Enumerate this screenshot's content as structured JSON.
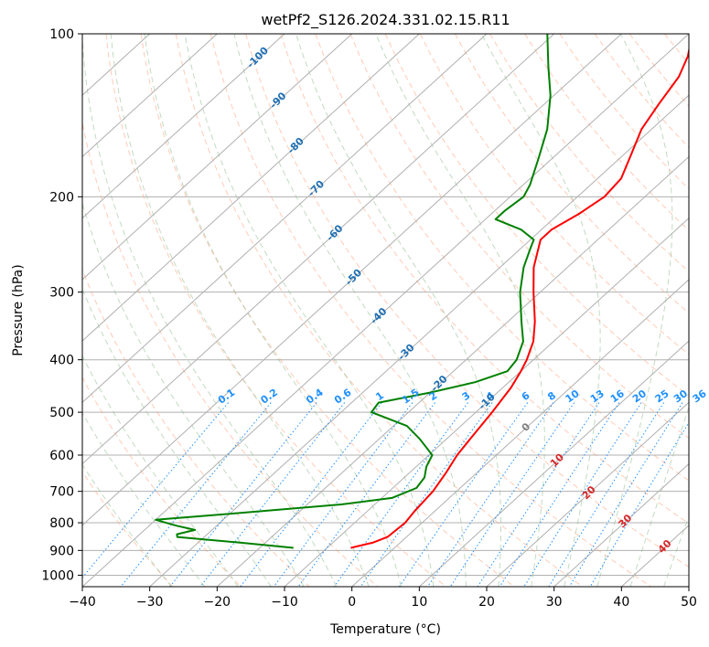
{
  "chart_data": {
    "type": "line",
    "subtype": "skew-t log-p diagram",
    "title": "wetPf2_S126.2024.331.02.15.R11",
    "xlabel": "Temperature (°C)",
    "ylabel": "Pressure (hPa)",
    "xlim": [
      -40,
      50
    ],
    "ylim": [
      1050,
      100
    ],
    "y_scale": "log",
    "grid": true,
    "x_ticks": [
      "−40",
      "−30",
      "−20",
      "−10",
      "0",
      "10",
      "20",
      "30",
      "40",
      "50"
    ],
    "x_tick_values": [
      -40,
      -30,
      -20,
      -10,
      0,
      10,
      20,
      30,
      40,
      50
    ],
    "y_ticks": [
      "100",
      "200",
      "300",
      "400",
      "500",
      "600",
      "700",
      "800",
      "900",
      "1000"
    ],
    "y_tick_values": [
      100,
      200,
      300,
      400,
      500,
      600,
      700,
      800,
      900,
      1000
    ],
    "series": [
      {
        "color": "#ff0000",
        "points": [
          {
            "p": 890,
            "t": -6.5
          },
          {
            "p": 870,
            "t": -4.0
          },
          {
            "p": 850,
            "t": -2.8
          },
          {
            "p": 800,
            "t": -2.5
          },
          {
            "p": 760,
            "t": -3.0
          },
          {
            "p": 700,
            "t": -3.5
          },
          {
            "p": 650,
            "t": -4.5
          },
          {
            "p": 600,
            "t": -5.8
          },
          {
            "p": 560,
            "t": -6.5
          },
          {
            "p": 500,
            "t": -7.6
          },
          {
            "p": 450,
            "t": -8.8
          },
          {
            "p": 420,
            "t": -10.0
          },
          {
            "p": 400,
            "t": -11.0
          },
          {
            "p": 370,
            "t": -13.0
          },
          {
            "p": 340,
            "t": -16.0
          },
          {
            "p": 300,
            "t": -21.0
          },
          {
            "p": 270,
            "t": -25.0
          },
          {
            "p": 240,
            "t": -28.5
          },
          {
            "p": 230,
            "t": -28.5
          },
          {
            "p": 215,
            "t": -27.0
          },
          {
            "p": 200,
            "t": -26.0
          },
          {
            "p": 185,
            "t": -26.5
          },
          {
            "p": 170,
            "t": -28.5
          },
          {
            "p": 150,
            "t": -31.5
          },
          {
            "p": 135,
            "t": -33.0
          },
          {
            "p": 120,
            "t": -34.5
          },
          {
            "p": 110,
            "t": -36.5
          },
          {
            "p": 100,
            "t": -39.5
          }
        ]
      },
      {
        "color": "#008000",
        "points": [
          {
            "p": 890,
            "t": -15.0
          },
          {
            "p": 870,
            "t": -24.0
          },
          {
            "p": 850,
            "t": -34.0
          },
          {
            "p": 840,
            "t": -34.5
          },
          {
            "p": 825,
            "t": -32.5
          },
          {
            "p": 810,
            "t": -36.0
          },
          {
            "p": 790,
            "t": -40.0
          },
          {
            "p": 770,
            "t": -30.0
          },
          {
            "p": 740,
            "t": -15.0
          },
          {
            "p": 720,
            "t": -8.5
          },
          {
            "p": 690,
            "t": -6.5
          },
          {
            "p": 660,
            "t": -7.0
          },
          {
            "p": 630,
            "t": -8.5
          },
          {
            "p": 600,
            "t": -9.5
          },
          {
            "p": 560,
            "t": -14.0
          },
          {
            "p": 530,
            "t": -18.0
          },
          {
            "p": 500,
            "t": -25.5
          },
          {
            "p": 480,
            "t": -26.0
          },
          {
            "p": 460,
            "t": -20.0
          },
          {
            "p": 440,
            "t": -15.0
          },
          {
            "p": 420,
            "t": -12.0
          },
          {
            "p": 400,
            "t": -12.5
          },
          {
            "p": 370,
            "t": -14.5
          },
          {
            "p": 340,
            "t": -18.0
          },
          {
            "p": 300,
            "t": -23.0
          },
          {
            "p": 270,
            "t": -26.5
          },
          {
            "p": 250,
            "t": -28.5
          },
          {
            "p": 240,
            "t": -29.5
          },
          {
            "p": 230,
            "t": -33.0
          },
          {
            "p": 220,
            "t": -38.5
          },
          {
            "p": 212,
            "t": -38.5
          },
          {
            "p": 200,
            "t": -38.0
          },
          {
            "p": 190,
            "t": -39.0
          },
          {
            "p": 170,
            "t": -42.0
          },
          {
            "p": 150,
            "t": -45.5
          },
          {
            "p": 130,
            "t": -50.5
          },
          {
            "p": 115,
            "t": -55.5
          },
          {
            "p": 100,
            "t": -61.0
          }
        ]
      }
    ],
    "reference_lines": {
      "isotherm_spacing_c": 10,
      "isotherm_color": "#b0b0b0",
      "dry_adiabat_color": "#ffa07a",
      "moist_adiabat_color": "#8fbc8f",
      "mixing_ratio_color": "#1e90ff",
      "mixing_ratio_values_gkg": [
        0.1,
        0.2,
        0.4,
        0.6,
        1,
        1.5,
        2,
        3,
        4,
        6,
        8,
        10,
        13,
        16,
        20,
        25,
        30,
        36
      ],
      "mixing_ratio_labels": [
        "0.1",
        "0.2",
        "0.4",
        "0.6",
        "1",
        "1.5",
        "2",
        "3",
        "4",
        "6",
        "8",
        "10",
        "13",
        "16",
        "20",
        "25",
        "30",
        "36"
      ],
      "mixing_ratio_label_pressure": 480,
      "temperature_labels": [
        {
          "text": "-100",
          "color": "#1f6fb4",
          "p": 110,
          "t": -100
        },
        {
          "text": "-90",
          "color": "#1f6fb4",
          "p": 132,
          "t": -90
        },
        {
          "text": "-80",
          "color": "#1f6fb4",
          "p": 160,
          "t": -80
        },
        {
          "text": "-70",
          "color": "#1f6fb4",
          "p": 192,
          "t": -70
        },
        {
          "text": "-60",
          "color": "#1f6fb4",
          "p": 232,
          "t": -60
        },
        {
          "text": "-50",
          "color": "#1f6fb4",
          "p": 280,
          "t": -50
        },
        {
          "text": "-40",
          "color": "#1f6fb4",
          "p": 330,
          "t": -40
        },
        {
          "text": "-30",
          "color": "#1f6fb4",
          "p": 385,
          "t": -30
        },
        {
          "text": "-20",
          "color": "#1f6fb4",
          "p": 440,
          "t": -20
        },
        {
          "text": "-10",
          "color": "#1f6fb4",
          "p": 475,
          "t": -10
        },
        {
          "text": "0",
          "color": "#808080",
          "p": 530,
          "t": 0
        },
        {
          "text": "10",
          "color": "#d62728",
          "p": 610,
          "t": 10
        },
        {
          "text": "20",
          "color": "#d62728",
          "p": 700,
          "t": 20
        },
        {
          "text": "30",
          "color": "#d62728",
          "p": 790,
          "t": 30
        },
        {
          "text": "40",
          "color": "#d62728",
          "p": 880,
          "t": 40
        }
      ]
    }
  }
}
